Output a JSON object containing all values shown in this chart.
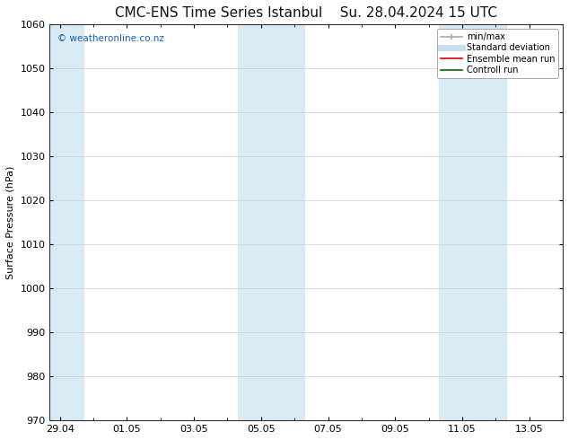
{
  "title": "CMC-ENS Time Series Istanbul",
  "title2": "Su. 28.04.2024 15 UTC",
  "ylabel": "Surface Pressure (hPa)",
  "ylim": [
    970,
    1060
  ],
  "yticks": [
    970,
    980,
    990,
    1000,
    1010,
    1020,
    1030,
    1040,
    1050,
    1060
  ],
  "xtick_labels": [
    "29.04",
    "01.05",
    "03.05",
    "05.05",
    "07.05",
    "09.05",
    "11.05",
    "13.05"
  ],
  "xtick_positions": [
    0,
    2,
    4,
    6,
    8,
    10,
    12,
    14
  ],
  "xlim": [
    -0.3,
    15.0
  ],
  "shaded_bands": [
    {
      "x_start": -0.3,
      "x_end": 0.7,
      "color": "#daeaf5"
    },
    {
      "x_start": 5.3,
      "x_end": 7.3,
      "color": "#daeaf5"
    },
    {
      "x_start": 11.3,
      "x_end": 13.3,
      "color": "#daeaf5"
    }
  ],
  "watermark": "© weatheronline.co.nz",
  "watermark_color": "#1a5fb4",
  "legend_items": [
    {
      "label": "min/max",
      "color": "#aaaaaa",
      "lw": 1.2,
      "style": "line_with_caps"
    },
    {
      "label": "Standard deviation",
      "color": "#c8dff0",
      "lw": 5,
      "style": "line"
    },
    {
      "label": "Ensemble mean run",
      "color": "#cc0000",
      "lw": 1.2,
      "style": "line"
    },
    {
      "label": "Controll run",
      "color": "#006600",
      "lw": 1.2,
      "style": "line"
    }
  ],
  "bg_color": "#ffffff",
  "plot_bg_color": "#ffffff",
  "grid_color": "#cccccc",
  "title_fontsize": 11,
  "title2_fontsize": 11,
  "axis_fontsize": 8,
  "tick_fontsize": 8,
  "watermark_fontsize": 7.5,
  "legend_fontsize": 7
}
